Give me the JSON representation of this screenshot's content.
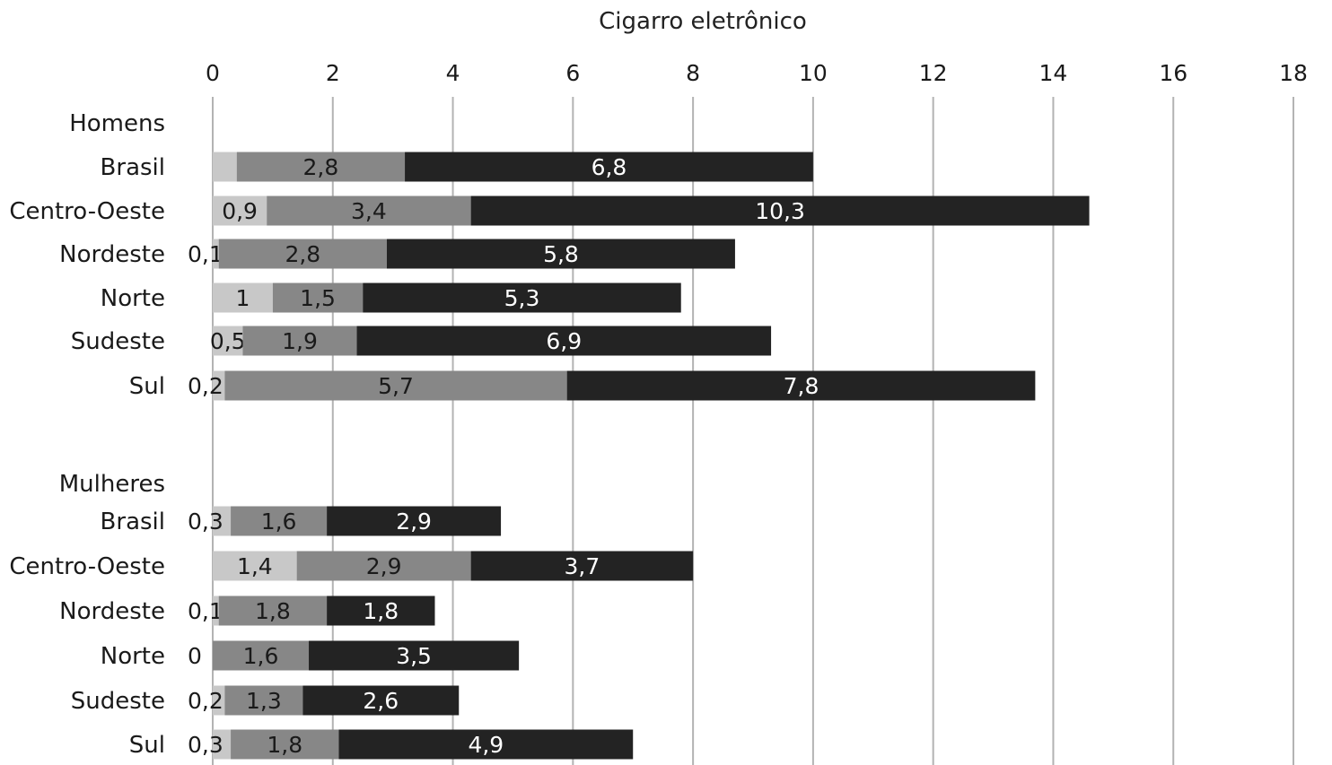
{
  "chart_data": {
    "type": "bar",
    "orientation": "horizontal",
    "stacked": true,
    "title": "Cigarro eletrônico",
    "xlim": [
      0,
      18
    ],
    "xticks": [
      "0",
      "2",
      "4",
      "6",
      "8",
      "10",
      "12",
      "14",
      "16",
      "18"
    ],
    "grid": true,
    "segment_colors": [
      "#c8c8c8",
      "#878787",
      "#232323"
    ],
    "segment_text_colors": [
      "#1a1a1a",
      "#1a1a1a",
      "#ffffff"
    ],
    "groups": [
      {
        "name": "Homens",
        "categories": [
          "Brasil",
          "Centro-Oeste",
          "Nordeste",
          "Norte",
          "Sudeste",
          "Sul"
        ],
        "segments": [
          [
            0.4,
            2.8,
            6.8
          ],
          [
            0.9,
            3.4,
            10.3
          ],
          [
            0.1,
            2.8,
            5.8
          ],
          [
            1,
            1.5,
            5.3
          ],
          [
            0.5,
            1.9,
            6.9
          ],
          [
            0.2,
            5.7,
            7.8
          ]
        ],
        "labels": [
          [
            "",
            "2,8",
            "6,8"
          ],
          [
            "0,9",
            "3,4",
            "10,3"
          ],
          [
            "0,1",
            "2,8",
            "5,8"
          ],
          [
            "1",
            "1,5",
            "5,3"
          ],
          [
            "0,5",
            "1,9",
            "6,9"
          ],
          [
            "0,2",
            "5,7",
            "7,8"
          ]
        ]
      },
      {
        "name": "Mulheres",
        "categories": [
          "Brasil",
          "Centro-Oeste",
          "Nordeste",
          "Norte",
          "Sudeste",
          "Sul"
        ],
        "segments": [
          [
            0.3,
            1.6,
            2.9
          ],
          [
            1.4,
            2.9,
            3.7
          ],
          [
            0.1,
            1.8,
            1.8
          ],
          [
            0,
            1.6,
            3.5
          ],
          [
            0.2,
            1.3,
            2.6
          ],
          [
            0.3,
            1.8,
            4.9
          ]
        ],
        "labels": [
          [
            "0,3",
            "1,6",
            "2,9"
          ],
          [
            "1,4",
            "2,9",
            "3,7"
          ],
          [
            "0,1",
            "1,8",
            "1,8"
          ],
          [
            "0",
            "1,6",
            "3,5"
          ],
          [
            "0,2",
            "1,3",
            "2,6"
          ],
          [
            "0,3",
            "1,8",
            "4,9"
          ]
        ]
      }
    ]
  }
}
